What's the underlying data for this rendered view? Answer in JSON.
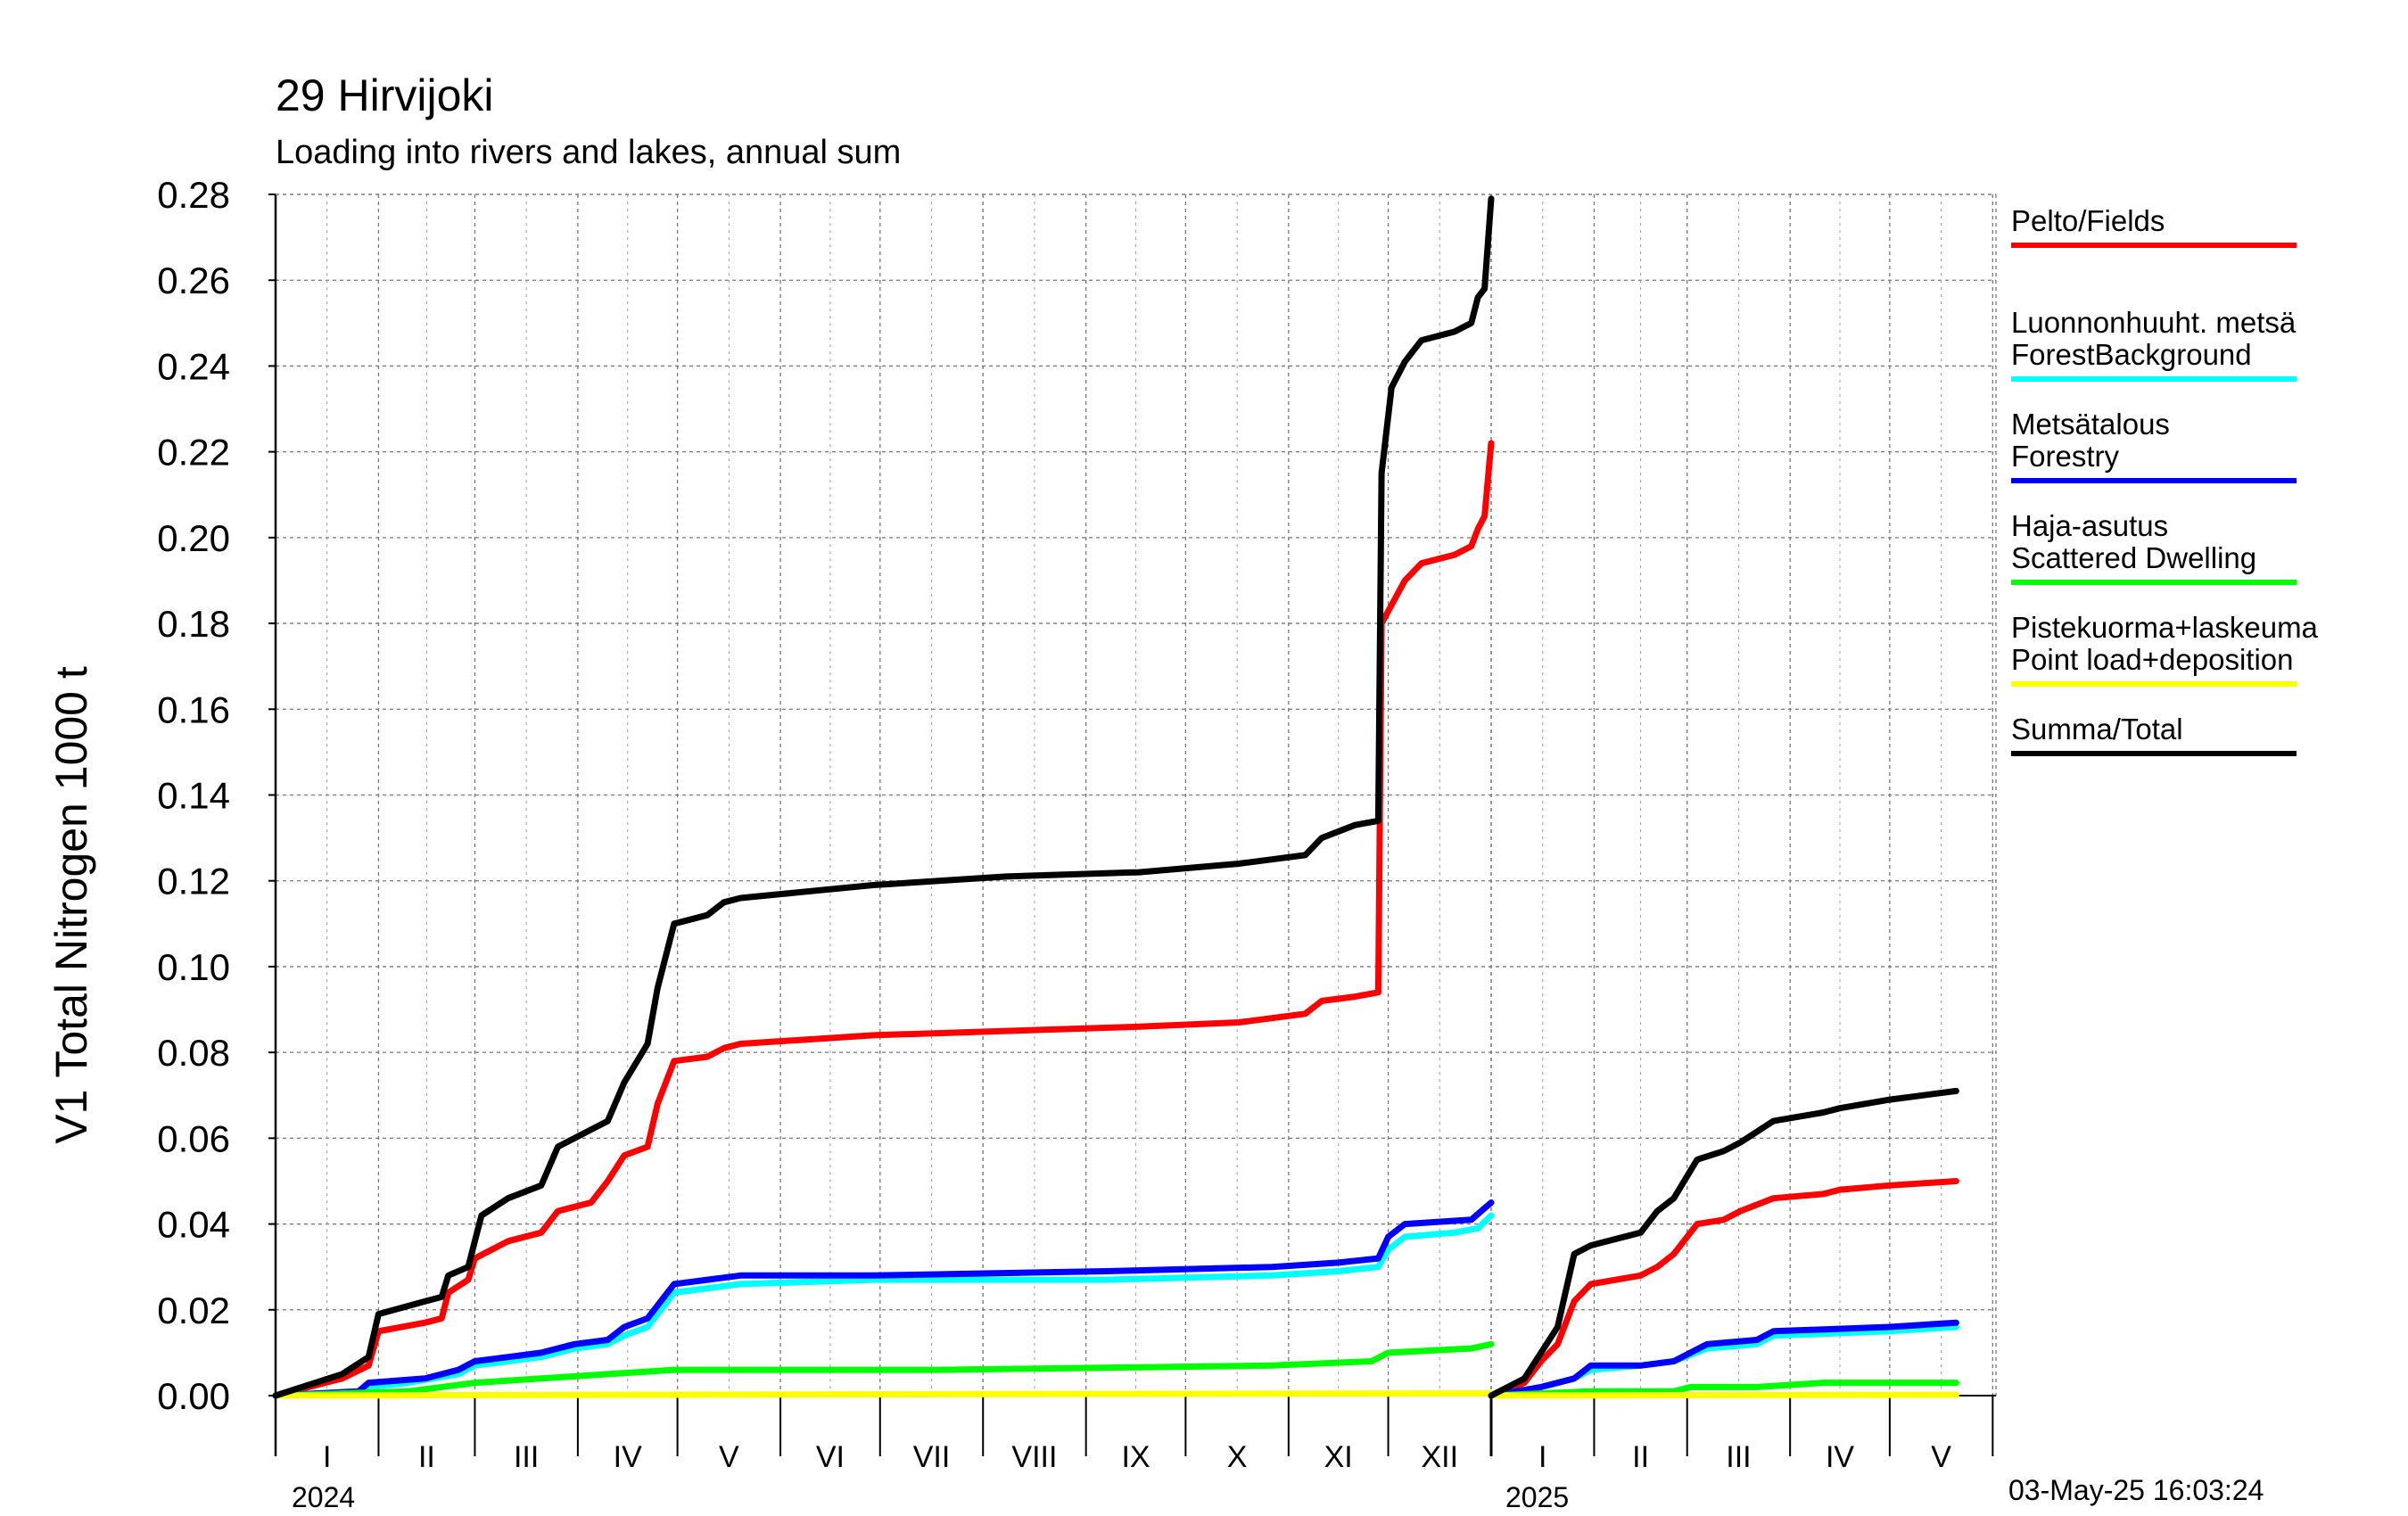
{
  "title": "29 Hirvijoki",
  "subtitle": "Loading into rivers and lakes, annual sum",
  "timestamp": "03-May-25 16:03:24",
  "legend": [
    {
      "label": "Pelto/Fields",
      "color": "#ff0000"
    },
    {
      "label": "Luonnonhuuht. metsä\nForestBackground",
      "color": "#00ffff"
    },
    {
      "label": "Metsätalous\nForestry",
      "color": "#0000ff"
    },
    {
      "label": "Haja-asutus\nScattered Dwelling",
      "color": "#00ff00"
    },
    {
      "label": "Pistekuorma+laskeuma\nPoint load+deposition",
      "color": "#ffff00"
    },
    {
      "label": "Summa/Total",
      "color": "#000000"
    }
  ],
  "chart_data": {
    "type": "line",
    "title": "29 Hirvijoki",
    "subtitle": "Loading into rivers and lakes, annual sum",
    "ylabel": "V1 Total Nitrogen 1000 t",
    "ylim": [
      0,
      0.28
    ],
    "yticks": [
      "0.00",
      "0.02",
      "0.04",
      "0.06",
      "0.08",
      "0.10",
      "0.12",
      "0.14",
      "0.16",
      "0.18",
      "0.20",
      "0.22",
      "0.24",
      "0.26",
      "0.28"
    ],
    "grid": true,
    "legend_position": "right",
    "x_months_2024": [
      "I",
      "II",
      "III",
      "IV",
      "V",
      "VI",
      "VII",
      "VIII",
      "IX",
      "X",
      "XI",
      "XII"
    ],
    "x_months_2025": [
      "I",
      "II",
      "III",
      "IV",
      "V"
    ],
    "year_labels": [
      "2024",
      "2025"
    ],
    "x_unit": "day of year",
    "series": [
      {
        "name": "Pelto/Fields",
        "color": "#ff0000",
        "y2024": [
          [
            0,
            0
          ],
          [
            20,
            0.004
          ],
          [
            28,
            0.007
          ],
          [
            31,
            0.015
          ],
          [
            45,
            0.017
          ],
          [
            50,
            0.018
          ],
          [
            52,
            0.024
          ],
          [
            58,
            0.027
          ],
          [
            60,
            0.032
          ],
          [
            70,
            0.036
          ],
          [
            80,
            0.038
          ],
          [
            85,
            0.043
          ],
          [
            95,
            0.045
          ],
          [
            100,
            0.05
          ],
          [
            105,
            0.056
          ],
          [
            112,
            0.058
          ],
          [
            115,
            0.068
          ],
          [
            120,
            0.078
          ],
          [
            130,
            0.079
          ],
          [
            135,
            0.081
          ],
          [
            140,
            0.082
          ],
          [
            180,
            0.084
          ],
          [
            220,
            0.085
          ],
          [
            260,
            0.086
          ],
          [
            290,
            0.087
          ],
          [
            300,
            0.088
          ],
          [
            310,
            0.089
          ],
          [
            315,
            0.092
          ],
          [
            325,
            0.093
          ],
          [
            332,
            0.094
          ],
          [
            333,
            0.18
          ],
          [
            340,
            0.19
          ],
          [
            345,
            0.194
          ],
          [
            355,
            0.196
          ],
          [
            360,
            0.198
          ],
          [
            362,
            0.202
          ],
          [
            364,
            0.205
          ],
          [
            366,
            0.222
          ]
        ],
        "y2025": [
          [
            0,
            0
          ],
          [
            10,
            0.003
          ],
          [
            15,
            0.008
          ],
          [
            20,
            0.012
          ],
          [
            25,
            0.022
          ],
          [
            30,
            0.026
          ],
          [
            45,
            0.028
          ],
          [
            50,
            0.03
          ],
          [
            55,
            0.033
          ],
          [
            62,
            0.04
          ],
          [
            70,
            0.041
          ],
          [
            75,
            0.043
          ],
          [
            85,
            0.046
          ],
          [
            100,
            0.047
          ],
          [
            105,
            0.048
          ],
          [
            120,
            0.049
          ],
          [
            140,
            0.05
          ]
        ]
      },
      {
        "name": "Luonnonhuuht. metsä ForestBackground",
        "color": "#00ffff",
        "y2024": [
          [
            0,
            0
          ],
          [
            25,
            0.001
          ],
          [
            28,
            0.002
          ],
          [
            40,
            0.003
          ],
          [
            55,
            0.005
          ],
          [
            60,
            0.007
          ],
          [
            70,
            0.008
          ],
          [
            80,
            0.009
          ],
          [
            90,
            0.011
          ],
          [
            100,
            0.012
          ],
          [
            105,
            0.014
          ],
          [
            112,
            0.016
          ],
          [
            120,
            0.024
          ],
          [
            130,
            0.025
          ],
          [
            140,
            0.026
          ],
          [
            180,
            0.027
          ],
          [
            250,
            0.027
          ],
          [
            300,
            0.028
          ],
          [
            320,
            0.029
          ],
          [
            332,
            0.03
          ],
          [
            335,
            0.034
          ],
          [
            340,
            0.037
          ],
          [
            355,
            0.038
          ],
          [
            362,
            0.039
          ],
          [
            366,
            0.042
          ]
        ],
        "y2025": [
          [
            0,
            0
          ],
          [
            15,
            0.002
          ],
          [
            25,
            0.004
          ],
          [
            30,
            0.006
          ],
          [
            45,
            0.007
          ],
          [
            55,
            0.008
          ],
          [
            65,
            0.011
          ],
          [
            80,
            0.012
          ],
          [
            85,
            0.014
          ],
          [
            120,
            0.015
          ],
          [
            140,
            0.016
          ]
        ]
      },
      {
        "name": "Metsätalous Forestry",
        "color": "#0000ff",
        "y2024": [
          [
            0,
            0
          ],
          [
            25,
            0.001
          ],
          [
            28,
            0.003
          ],
          [
            45,
            0.004
          ],
          [
            55,
            0.006
          ],
          [
            60,
            0.008
          ],
          [
            70,
            0.009
          ],
          [
            80,
            0.01
          ],
          [
            90,
            0.012
          ],
          [
            100,
            0.013
          ],
          [
            105,
            0.016
          ],
          [
            112,
            0.018
          ],
          [
            120,
            0.026
          ],
          [
            130,
            0.027
          ],
          [
            140,
            0.028
          ],
          [
            180,
            0.028
          ],
          [
            250,
            0.029
          ],
          [
            300,
            0.03
          ],
          [
            320,
            0.031
          ],
          [
            332,
            0.032
          ],
          [
            335,
            0.037
          ],
          [
            340,
            0.04
          ],
          [
            360,
            0.041
          ],
          [
            366,
            0.045
          ]
        ],
        "y2025": [
          [
            0,
            0
          ],
          [
            15,
            0.002
          ],
          [
            25,
            0.004
          ],
          [
            30,
            0.007
          ],
          [
            45,
            0.007
          ],
          [
            55,
            0.008
          ],
          [
            65,
            0.012
          ],
          [
            80,
            0.013
          ],
          [
            85,
            0.015
          ],
          [
            120,
            0.016
          ],
          [
            140,
            0.017
          ]
        ]
      },
      {
        "name": "Haja-asutus Scattered Dwelling",
        "color": "#00ff00",
        "y2024": [
          [
            0,
            0
          ],
          [
            40,
            0.001
          ],
          [
            60,
            0.003
          ],
          [
            80,
            0.004
          ],
          [
            100,
            0.005
          ],
          [
            120,
            0.006
          ],
          [
            200,
            0.006
          ],
          [
            300,
            0.007
          ],
          [
            330,
            0.008
          ],
          [
            335,
            0.01
          ],
          [
            360,
            0.011
          ],
          [
            366,
            0.012
          ]
        ],
        "y2025": [
          [
            0,
            0
          ],
          [
            30,
            0.001
          ],
          [
            55,
            0.001
          ],
          [
            60,
            0.002
          ],
          [
            80,
            0.002
          ],
          [
            100,
            0.003
          ],
          [
            140,
            0.003
          ]
        ]
      },
      {
        "name": "Pistekuorma+laskeuma Point load+deposition",
        "color": "#ffff00",
        "y2024": [
          [
            0,
            0
          ],
          [
            120,
            0.0002
          ],
          [
            250,
            0.0004
          ],
          [
            366,
            0.0005
          ]
        ],
        "y2025": [
          [
            0,
            0
          ],
          [
            140,
            0.0002
          ]
        ]
      },
      {
        "name": "Summa/Total",
        "color": "#000000",
        "y2024": [
          [
            0,
            0
          ],
          [
            20,
            0.005
          ],
          [
            28,
            0.009
          ],
          [
            31,
            0.019
          ],
          [
            45,
            0.022
          ],
          [
            50,
            0.023
          ],
          [
            52,
            0.028
          ],
          [
            58,
            0.03
          ],
          [
            60,
            0.036
          ],
          [
            62,
            0.042
          ],
          [
            70,
            0.046
          ],
          [
            80,
            0.049
          ],
          [
            85,
            0.058
          ],
          [
            95,
            0.062
          ],
          [
            100,
            0.064
          ],
          [
            105,
            0.073
          ],
          [
            112,
            0.082
          ],
          [
            115,
            0.095
          ],
          [
            120,
            0.11
          ],
          [
            130,
            0.112
          ],
          [
            135,
            0.115
          ],
          [
            140,
            0.116
          ],
          [
            180,
            0.119
          ],
          [
            220,
            0.121
          ],
          [
            260,
            0.122
          ],
          [
            290,
            0.124
          ],
          [
            300,
            0.125
          ],
          [
            310,
            0.126
          ],
          [
            315,
            0.13
          ],
          [
            325,
            0.133
          ],
          [
            332,
            0.134
          ],
          [
            333,
            0.215
          ],
          [
            336,
            0.235
          ],
          [
            340,
            0.241
          ],
          [
            345,
            0.246
          ],
          [
            355,
            0.248
          ],
          [
            360,
            0.25
          ],
          [
            362,
            0.256
          ],
          [
            364,
            0.258
          ],
          [
            366,
            0.279
          ]
        ],
        "y2025": [
          [
            0,
            0
          ],
          [
            10,
            0.004
          ],
          [
            15,
            0.01
          ],
          [
            20,
            0.016
          ],
          [
            25,
            0.033
          ],
          [
            30,
            0.035
          ],
          [
            45,
            0.038
          ],
          [
            50,
            0.043
          ],
          [
            55,
            0.046
          ],
          [
            62,
            0.055
          ],
          [
            70,
            0.057
          ],
          [
            75,
            0.059
          ],
          [
            85,
            0.064
          ],
          [
            100,
            0.066
          ],
          [
            105,
            0.067
          ],
          [
            120,
            0.069
          ],
          [
            140,
            0.071
          ]
        ]
      }
    ]
  }
}
